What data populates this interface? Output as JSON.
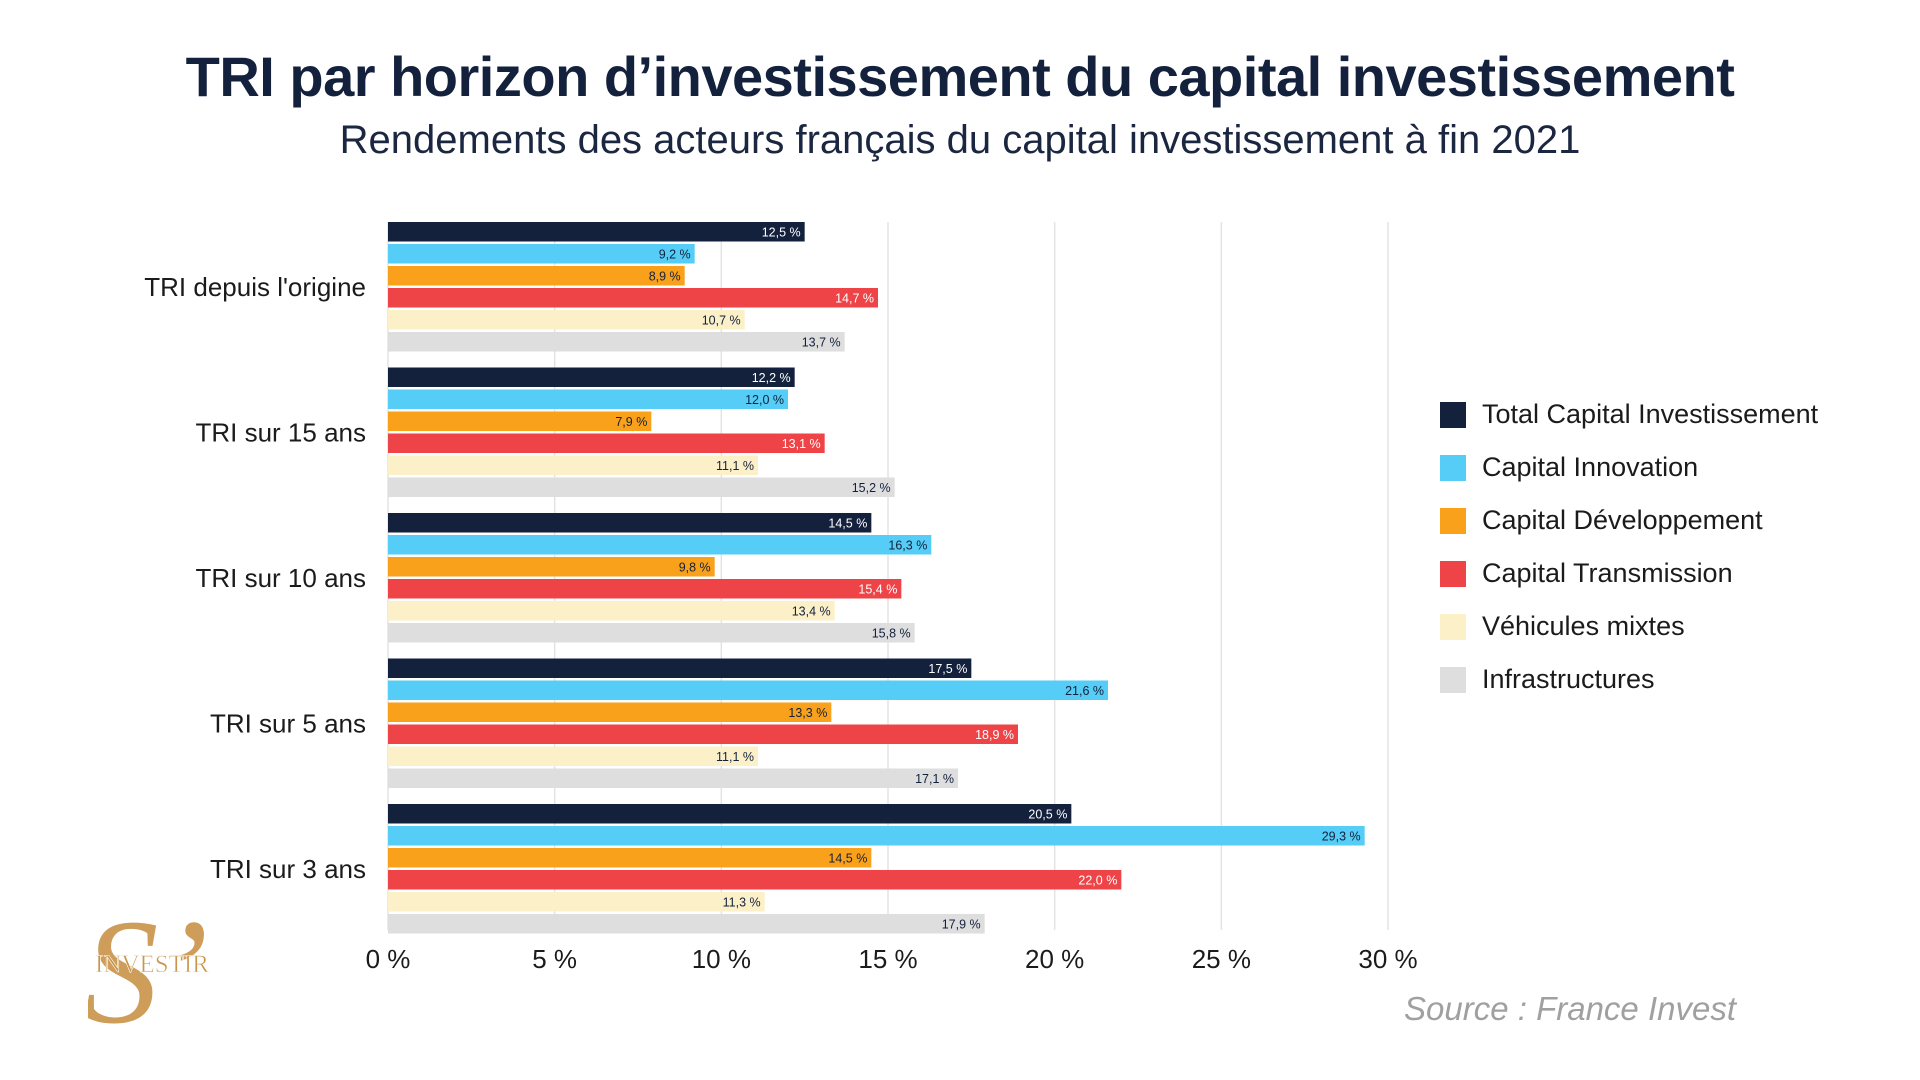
{
  "header": {
    "title": "TRI par horizon d’investissement du capital investissement",
    "subtitle": "Rendements des acteurs français du capital investissement à fin 2021"
  },
  "colors": {
    "total": "#13213d",
    "innovation": "#56cdf6",
    "developpement": "#f9a11b",
    "transmission": "#ee4447",
    "mixtes": "#fbf0c8",
    "infrastructures": "#dedede",
    "grid": "#e3e3e3",
    "logo_gold": "#c9954b"
  },
  "chart_data": {
    "type": "bar",
    "orientation": "horizontal",
    "title": "TRI par horizon d’investissement du capital investissement",
    "subtitle": "Rendements des acteurs français du capital investissement à fin 2021",
    "categories": [
      "TRI depuis l'origine",
      "TRI sur 15 ans",
      "TRI sur 10 ans",
      "TRI sur 5 ans",
      "TRI sur 3 ans"
    ],
    "xlim": [
      0,
      30
    ],
    "xticks": [
      0,
      5,
      10,
      15,
      20,
      25,
      30
    ],
    "xtick_labels": [
      "0 %",
      "5 %",
      "10 %",
      "15 %",
      "20 %",
      "25 %",
      "30 %"
    ],
    "grid": true,
    "legend_position": "right",
    "series": [
      {
        "name": "Total Capital Investissement",
        "color_key": "total",
        "label_color": "#ffffff",
        "values": [
          12.5,
          12.2,
          14.5,
          17.5,
          20.5
        ],
        "labels": [
          "12,5 %",
          "12,2 %",
          "14,5 %",
          "17,5 %",
          "20,5 %"
        ]
      },
      {
        "name": "Capital Innovation",
        "color_key": "innovation",
        "label_color": "#13213d",
        "values": [
          9.2,
          12.0,
          16.3,
          21.6,
          29.3
        ],
        "labels": [
          "9,2 %",
          "12,0 %",
          "16,3 %",
          "21,6 %",
          "29,3 %"
        ]
      },
      {
        "name": "Capital Développement",
        "color_key": "developpement",
        "label_color": "#13213d",
        "values": [
          8.9,
          7.9,
          9.8,
          13.3,
          14.5
        ],
        "labels": [
          "8,9 %",
          "7,9 %",
          "9,8 %",
          "13,3 %",
          "14,5 %"
        ]
      },
      {
        "name": "Capital Transmission",
        "color_key": "transmission",
        "label_color": "#ffffff",
        "values": [
          14.7,
          13.1,
          15.4,
          18.9,
          22.0
        ],
        "labels": [
          "14,7 %",
          "13,1 %",
          "15,4 %",
          "18,9 %",
          "22,0 %"
        ]
      },
      {
        "name": "Véhicules mixtes",
        "color_key": "mixtes",
        "label_color": "#13213d",
        "values": [
          10.7,
          11.1,
          13.4,
          11.1,
          11.3
        ],
        "labels": [
          "10,7 %",
          "11,1 %",
          "13,4 %",
          "11,1 %",
          "11,3 %"
        ]
      },
      {
        "name": "Infrastructures",
        "color_key": "infrastructures",
        "label_color": "#13213d",
        "values": [
          13.7,
          15.2,
          15.8,
          17.1,
          17.9
        ],
        "labels": [
          "13,7 %",
          "15,2 %",
          "15,8 %",
          "17,1 %",
          "17,9 %"
        ]
      }
    ]
  },
  "legend": {
    "items": [
      "Total Capital Investissement",
      "Capital Innovation",
      "Capital Développement",
      "Capital Transmission",
      "Véhicules mixtes",
      "Infrastructures"
    ],
    "color_keys": [
      "total",
      "innovation",
      "developpement",
      "transmission",
      "mixtes",
      "infrastructures"
    ]
  },
  "source": "Source : France Invest",
  "logo": {
    "letter": "S’",
    "text": "INVESTIR"
  }
}
